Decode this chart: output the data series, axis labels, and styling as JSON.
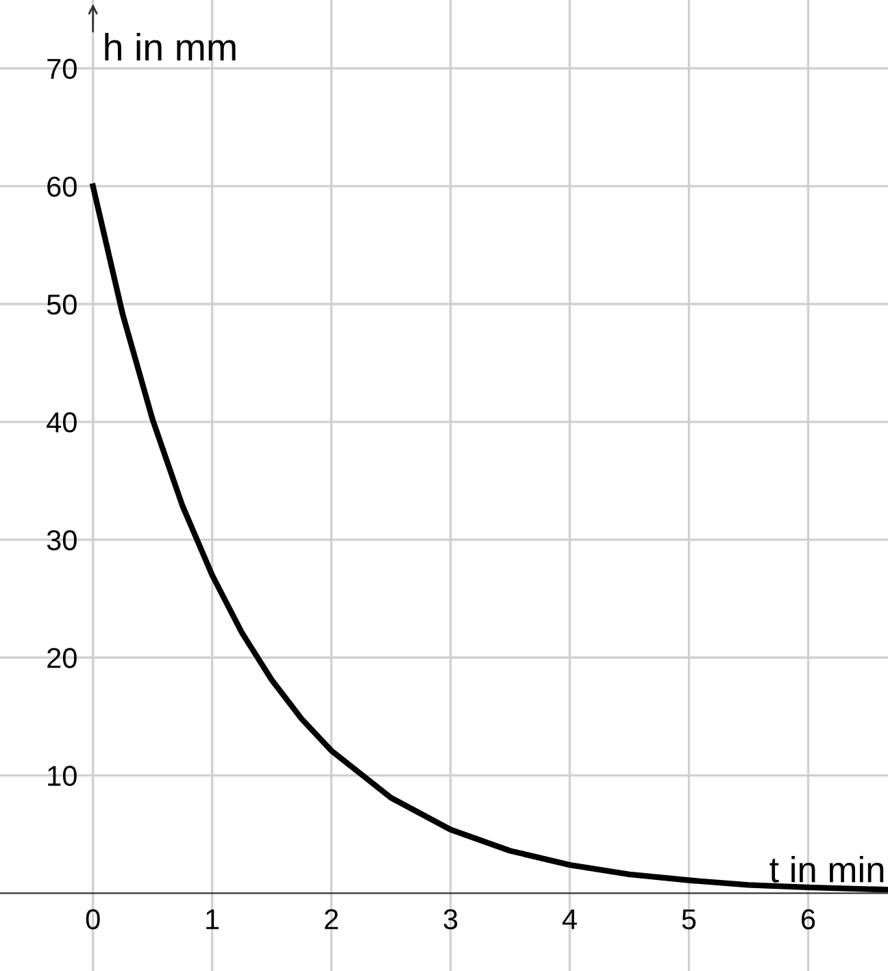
{
  "chart_data": {
    "type": "line",
    "xlabel": "t in min",
    "ylabel": "h in mm",
    "x": [
      0,
      0.25,
      0.5,
      0.75,
      1,
      1.25,
      1.5,
      1.75,
      2,
      2.5,
      3,
      3.5,
      4,
      4.5,
      5,
      5.5,
      6,
      6.67
    ],
    "series": [
      {
        "color": "#000000",
        "values": [
          60,
          49.1,
          40.2,
          32.9,
          27,
          22.1,
          18.1,
          14.8,
          12.1,
          8.1,
          5.4,
          3.6,
          2.4,
          1.6,
          1.1,
          0.7,
          0.5,
          0.3
        ]
      }
    ],
    "xlim": [
      -0.78,
      6.67
    ],
    "ylim": [
      -6.6,
      75.8
    ],
    "xticks": [
      0,
      1,
      2,
      3,
      4,
      5,
      6
    ],
    "yticks": [
      10,
      20,
      30,
      40,
      50,
      60,
      70
    ],
    "grid": true,
    "marker": "none",
    "line_style": "solid"
  }
}
